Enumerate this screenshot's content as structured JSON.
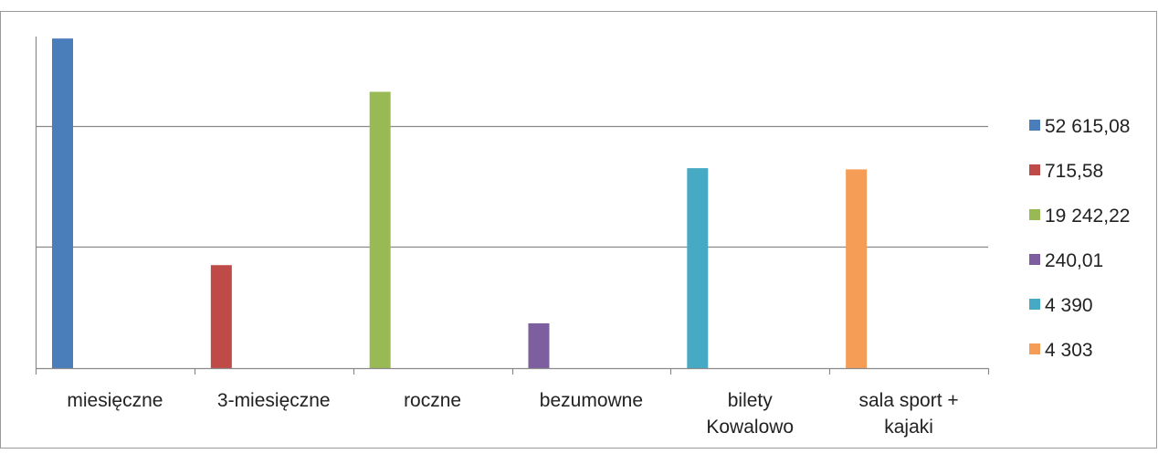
{
  "chart_data": {
    "type": "bar",
    "categories": [
      "miesięczne",
      "3-miesięczne",
      "roczne",
      "bezumowne",
      "bilety Kowalowo",
      "sala sport + kajaki"
    ],
    "category_label_lines": [
      [
        "miesięczne"
      ],
      [
        "3-miesięczne"
      ],
      [
        "roczne"
      ],
      [
        "bezumowne"
      ],
      [
        "bilety",
        "Kowalowo"
      ],
      [
        "sala sport +",
        "kajaki"
      ]
    ],
    "series": [
      {
        "name": "52 615,08",
        "category": "miesięczne",
        "value": 2.72,
        "color": "#4A7EBB"
      },
      {
        "name": "715,58",
        "category": "3-miesięczne",
        "value": 0.85,
        "color": "#BE4B48"
      },
      {
        "name": "19 242,22",
        "category": "roczne",
        "value": 2.28,
        "color": "#98B954"
      },
      {
        "name": "240,01",
        "category": "bezumowne",
        "value": 0.37,
        "color": "#7D5FA0"
      },
      {
        "name": "4 390",
        "category": "bilety Kowalowo",
        "value": 1.65,
        "color": "#46AAC5"
      },
      {
        "name": "4 303",
        "category": "sala sport + kajaki",
        "value": 1.64,
        "color": "#F59D56"
      }
    ],
    "ylim": [
      0,
      3
    ],
    "y_gridlines": [
      1,
      2
    ],
    "y_tick_labels": false,
    "grid": true,
    "legend_position": "right",
    "title": "",
    "xlabel": "",
    "ylabel": ""
  }
}
